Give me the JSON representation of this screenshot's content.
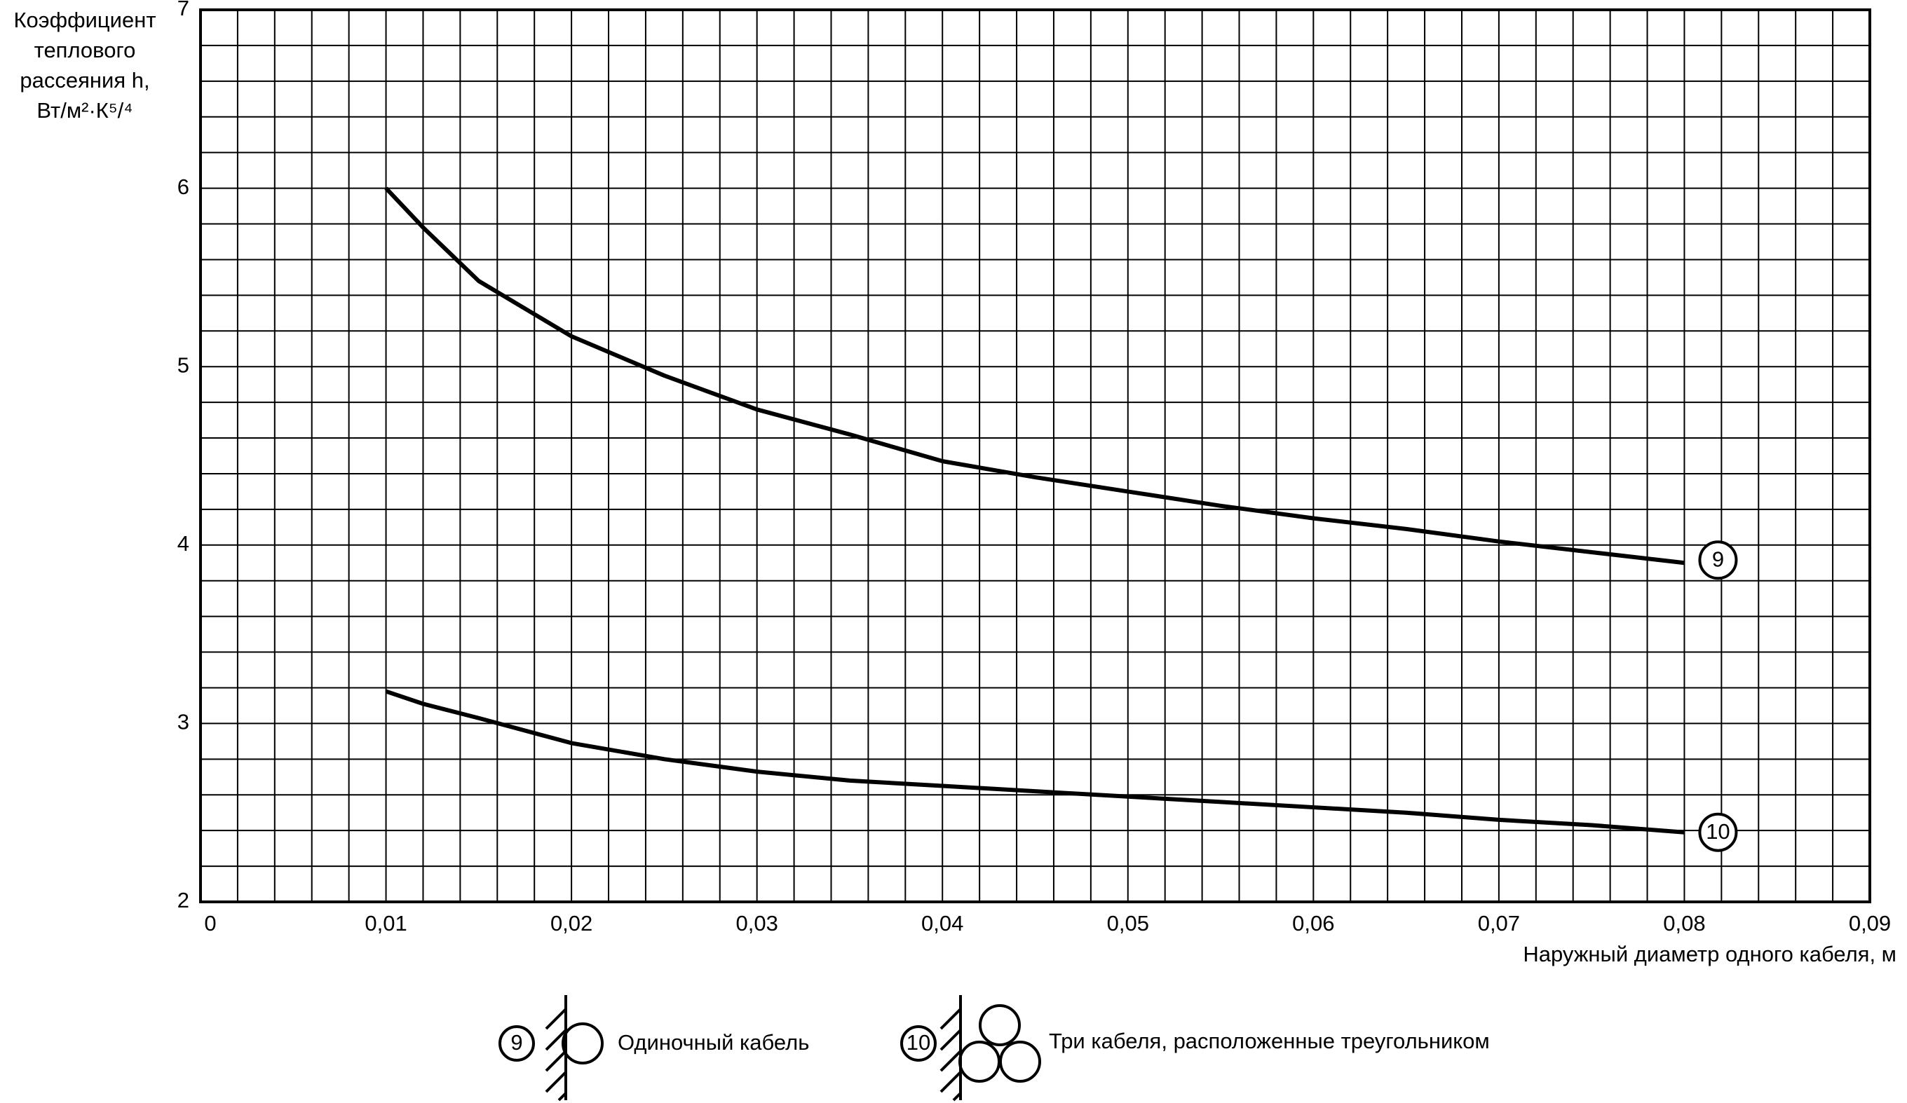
{
  "chart_data": {
    "type": "line",
    "ylabel": [
      "Коэффициент",
      "теплового",
      "рассеяния h,",
      "Вт/м²·К⁵/⁴"
    ],
    "xlabel": "Наружный диаметр одного кабеля, м",
    "x": [
      0.01,
      0.012,
      0.015,
      0.02,
      0.025,
      0.03,
      0.035,
      0.04,
      0.045,
      0.05,
      0.055,
      0.06,
      0.065,
      0.07,
      0.075,
      0.08
    ],
    "series": [
      {
        "name": "9",
        "label": "Одиночный кабель",
        "color": "#000000",
        "values": [
          6.0,
          5.78,
          5.48,
          5.17,
          4.95,
          4.76,
          4.62,
          4.47,
          4.38,
          4.3,
          4.22,
          4.15,
          4.09,
          4.02,
          3.96,
          3.9
        ]
      },
      {
        "name": "10",
        "label": "Три кабеля, расположенные треугольником",
        "color": "#000000",
        "values": [
          3.18,
          3.11,
          3.03,
          2.89,
          2.8,
          2.73,
          2.68,
          2.65,
          2.62,
          2.59,
          2.56,
          2.53,
          2.5,
          2.46,
          2.43,
          2.39
        ]
      }
    ],
    "xlim": [
      0,
      0.09
    ],
    "ylim": [
      2,
      7
    ],
    "xticks": [
      0,
      {
        "value": 0.01,
        "label": "0,01"
      },
      {
        "value": 0.02,
        "label": "0,02"
      },
      {
        "value": 0.03,
        "label": "0,03"
      },
      {
        "value": 0.04,
        "label": "0,04"
      },
      {
        "value": 0.05,
        "label": "0,05"
      },
      {
        "value": 0.06,
        "label": "0,06"
      },
      {
        "value": 0.07,
        "label": "0,07"
      },
      {
        "value": 0.08,
        "label": "0,08"
      },
      {
        "value": 0.09,
        "label": "0,09"
      }
    ],
    "yticks": [
      2,
      3,
      4,
      5,
      6,
      7
    ],
    "grid": true,
    "minor_divisions": 5
  }
}
